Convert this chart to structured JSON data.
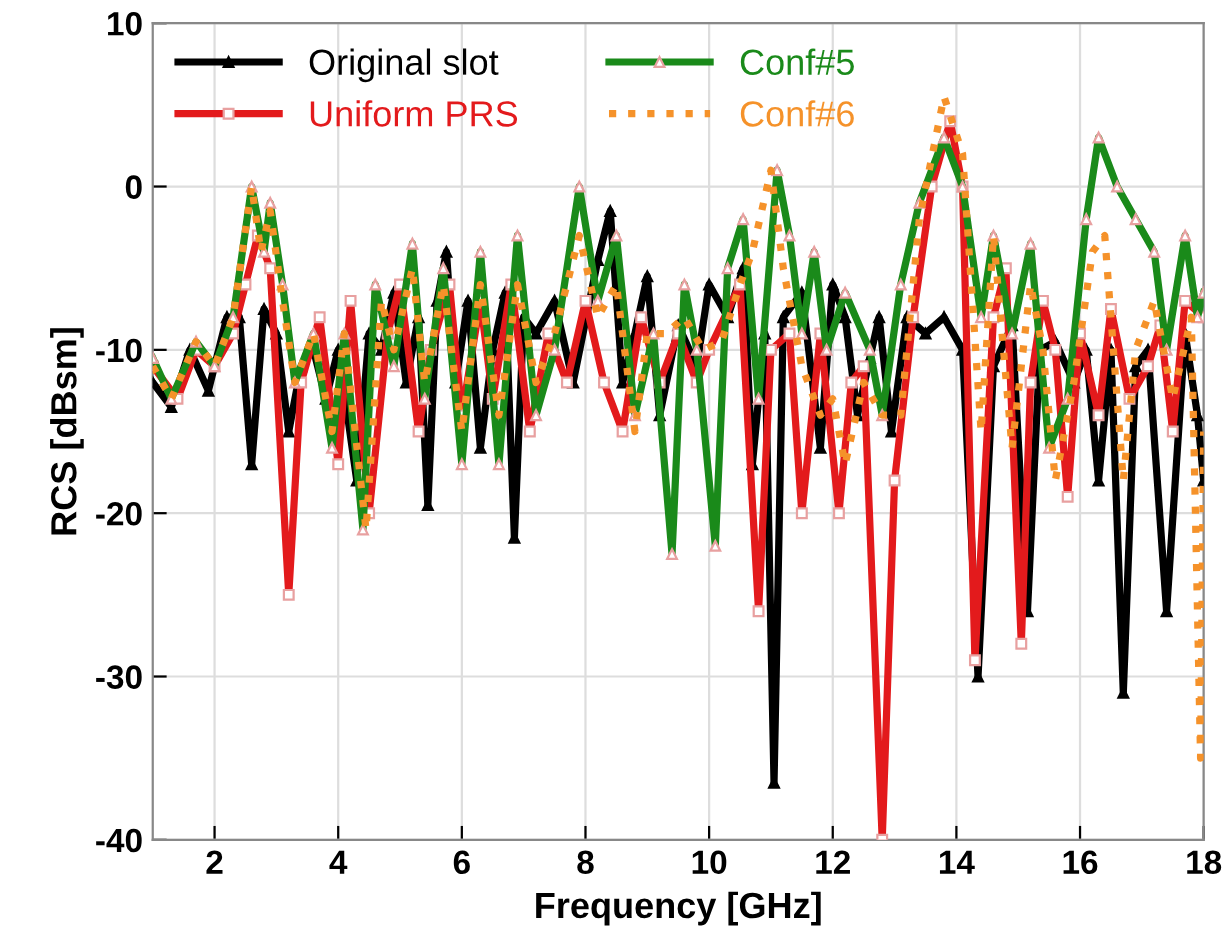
{
  "chart_data": {
    "type": "line",
    "xlabel": "Frequency [GHz]",
    "ylabel": "RCS [dBsm]",
    "xlim": [
      1,
      18
    ],
    "xticks": [
      2,
      4,
      6,
      8,
      10,
      12,
      14,
      16,
      18
    ],
    "ylim": [
      -40,
      10
    ],
    "yticks": [
      -40,
      -30,
      -20,
      -10,
      0,
      10
    ],
    "grid": true,
    "legend": "top left",
    "series": [
      {
        "name": "Original slot",
        "color": "#000000",
        "marker": "triangle",
        "line_style": "solid",
        "x": [
          1,
          1.3,
          1.6,
          1.9,
          2.2,
          2.4,
          2.6,
          2.8,
          3.0,
          3.2,
          3.4,
          3.6,
          3.8,
          4.0,
          4.3,
          4.5,
          4.7,
          4.9,
          5.1,
          5.3,
          5.45,
          5.6,
          5.75,
          5.9,
          6.1,
          6.3,
          6.5,
          6.7,
          6.85,
          7.0,
          7.2,
          7.5,
          7.8,
          8.2,
          8.4,
          8.6,
          8.8,
          9.0,
          9.2,
          9.5,
          9.8,
          10.0,
          10.3,
          10.55,
          10.7,
          10.9,
          11.05,
          11.2,
          11.5,
          11.8,
          12.0,
          12.2,
          12.4,
          12.6,
          12.75,
          12.95,
          13.2,
          13.5,
          13.8,
          14.1,
          14.35,
          14.6,
          14.9,
          15.15,
          15.35,
          15.6,
          15.9,
          16.1,
          16.3,
          16.5,
          16.7,
          16.9,
          17.1,
          17.4,
          17.7,
          17.9,
          18
        ],
        "values": [
          -12,
          -13.5,
          -10,
          -12.5,
          -8,
          -8,
          -17,
          -7.5,
          -9,
          -15,
          -11,
          -10,
          -13,
          -10,
          -18,
          -9,
          -10,
          -6.5,
          -12,
          -8,
          -19.5,
          -7,
          -4,
          -12,
          -7,
          -16,
          -10,
          -6.5,
          -21.5,
          -8,
          -9,
          -7,
          -12,
          -4.5,
          -1.5,
          -12,
          -9,
          -5.5,
          -14,
          -8.5,
          -11,
          -6,
          -8,
          -5,
          -17,
          -9,
          -36.5,
          -8,
          -6.5,
          -16,
          -6,
          -8,
          -14,
          -10.5,
          -8,
          -15,
          -8,
          -9,
          -8,
          -10,
          -30,
          -11,
          -8.5,
          -26,
          -10,
          -9.5,
          -12,
          -10,
          -18,
          -10,
          -31,
          -11,
          -10,
          -26,
          -9,
          -14,
          -18
        ]
      },
      {
        "name": "Uniform PRS",
        "color": "#e31a1c",
        "marker": "square",
        "line_style": "solid",
        "x": [
          1,
          1.4,
          1.7,
          2.0,
          2.3,
          2.5,
          2.7,
          2.9,
          3.2,
          3.4,
          3.7,
          4.0,
          4.2,
          4.5,
          4.8,
          5.0,
          5.3,
          5.5,
          5.8,
          6.0,
          6.3,
          6.5,
          6.8,
          7.1,
          7.4,
          7.7,
          8.0,
          8.3,
          8.6,
          8.9,
          9.2,
          9.5,
          9.8,
          10.0,
          10.5,
          10.8,
          11.0,
          11.3,
          11.5,
          11.8,
          12.1,
          12.3,
          12.5,
          12.8,
          13.0,
          13.3,
          13.6,
          13.9,
          14.1,
          14.3,
          14.6,
          14.8,
          15.05,
          15.2,
          15.4,
          15.6,
          15.8,
          16.0,
          16.3,
          16.5,
          16.8,
          17.1,
          17.3,
          17.5,
          17.7,
          18
        ],
        "values": [
          -11,
          -13,
          -10,
          -11,
          -9,
          -6,
          -3,
          -5,
          -25,
          -12,
          -8,
          -17,
          -7,
          -20,
          -9,
          -6,
          -15,
          -10,
          -6,
          -14,
          -7,
          -13,
          -6,
          -15,
          -9,
          -12,
          -7,
          -12,
          -15,
          -8,
          -12,
          -9,
          -12,
          -10,
          -6,
          -26,
          -10,
          -9,
          -20,
          -9,
          -20,
          -12,
          -11,
          -40,
          -18,
          -8,
          0,
          4,
          0,
          -29,
          -8,
          -5,
          -28,
          -12,
          -7,
          -10,
          -19,
          -9,
          -14,
          -7.5,
          -13,
          -11,
          -8.5,
          -15,
          -7,
          -8
        ]
      },
      {
        "name": "Conf#5",
        "color": "#1a8a1a",
        "marker": "triangle",
        "line_style": "solid",
        "x": [
          1,
          1.3,
          1.7,
          2.0,
          2.3,
          2.6,
          2.8,
          2.9,
          3.1,
          3.3,
          3.6,
          3.9,
          4.1,
          4.4,
          4.6,
          4.9,
          5.2,
          5.4,
          5.7,
          6.0,
          6.3,
          6.6,
          6.9,
          7.2,
          7.5,
          7.9,
          8.2,
          8.5,
          8.8,
          9.1,
          9.4,
          9.6,
          9.8,
          10.1,
          10.3,
          10.55,
          10.8,
          11.1,
          11.3,
          11.5,
          11.7,
          11.9,
          12.2,
          12.6,
          12.8,
          13.1,
          13.4,
          13.8,
          14.1,
          14.4,
          14.6,
          14.9,
          15.2,
          15.5,
          15.8,
          16.1,
          16.3,
          16.6,
          16.9,
          17.2,
          17.4,
          17.7,
          17.9,
          18
        ],
        "values": [
          -10.5,
          -13,
          -9.5,
          -11,
          -8,
          0,
          -4,
          -1,
          -6,
          -12,
          -9,
          -16,
          -9,
          -21,
          -6,
          -11,
          -3.5,
          -13,
          -5,
          -17,
          -4,
          -17,
          -3,
          -14,
          -10,
          0,
          -7,
          -3,
          -14,
          -9,
          -22.5,
          -6,
          -10,
          -22,
          -5,
          -2,
          -13,
          1,
          -3,
          -9,
          -4,
          -10,
          -6.5,
          -10,
          -14,
          -6,
          -1,
          3,
          0,
          -8,
          -3,
          -9,
          -3.5,
          -16,
          -13,
          -2,
          3,
          0,
          -2,
          -4,
          -10,
          -3,
          -8,
          -6.5
        ]
      },
      {
        "name": "Conf#6",
        "color": "#f5922a",
        "marker": "none",
        "line_style": "dotted",
        "x": [
          1,
          1.3,
          1.7,
          2.0,
          2.3,
          2.6,
          2.75,
          2.9,
          3.1,
          3.3,
          3.6,
          3.9,
          4.1,
          4.45,
          4.7,
          4.9,
          5.2,
          5.4,
          5.7,
          6.0,
          6.3,
          6.6,
          6.9,
          7.2,
          7.5,
          7.9,
          8.2,
          8.5,
          8.8,
          9.0,
          9.3,
          9.6,
          9.9,
          10.2,
          10.5,
          10.7,
          11.0,
          11.2,
          11.5,
          11.8,
          12.0,
          12.2,
          12.5,
          12.8,
          13.1,
          13.4,
          13.8,
          14.1,
          14.4,
          14.6,
          14.9,
          15.2,
          15.4,
          15.6,
          15.9,
          16.2,
          16.4,
          16.7,
          16.9,
          17.2,
          17.5,
          17.8,
          17.95,
          18
        ],
        "values": [
          -11,
          -13,
          -9.5,
          -11,
          -8,
          0,
          -4,
          -1.5,
          -7,
          -12,
          -9,
          -15,
          -9,
          -21,
          -7,
          -10,
          -5,
          -12,
          -6,
          -15,
          -6,
          -14,
          -6,
          -12,
          -9,
          -3,
          -8,
          -6,
          -15,
          -9,
          -9,
          -8,
          -10,
          -9.5,
          -6,
          -4,
          1,
          -5,
          -11,
          -14,
          -13,
          -17,
          -12,
          -14,
          -14,
          -2,
          5.5,
          2,
          -15,
          -3,
          -16,
          -6,
          -10,
          -18,
          -12,
          -4,
          -3,
          -18,
          -10,
          -7,
          -13,
          -8,
          -35,
          -15
        ]
      }
    ]
  }
}
